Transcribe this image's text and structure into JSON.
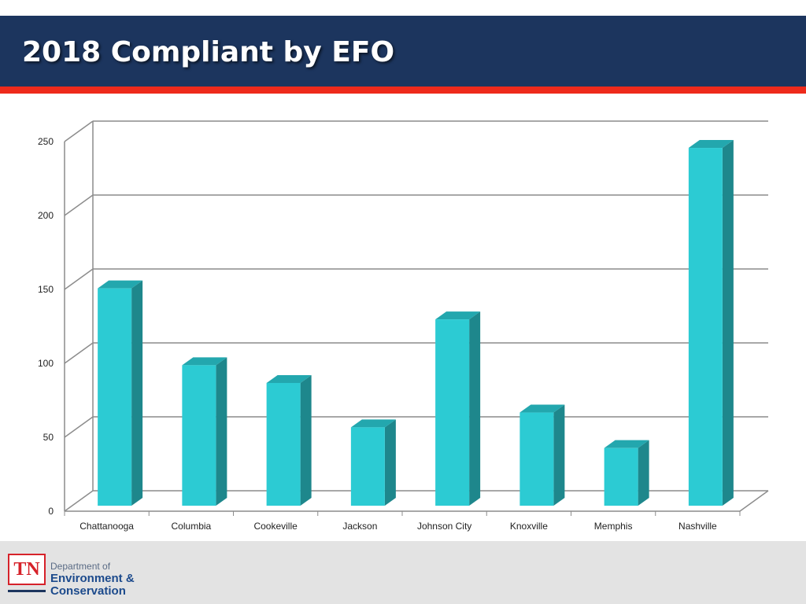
{
  "slide": {
    "title": "2018 Compliant by EFO"
  },
  "footer": {
    "logo_mark": "TN",
    "department_line1": "Department of",
    "department_line2": "Environment &",
    "department_line3": "Conservation"
  },
  "colors": {
    "bar_front": "#2ccbd3",
    "bar_side": "#1e878c",
    "bar_top": "#23a7ae",
    "header": "#1c355e",
    "accent": "#ee2a1b"
  },
  "chart_data": {
    "type": "bar",
    "title": "",
    "xlabel": "",
    "ylabel": "",
    "categories": [
      "Chattanooga",
      "Columbia",
      "Cookeville",
      "Jackson",
      "Johnson City",
      "Knoxville",
      "Memphis",
      "Nashville"
    ],
    "values": [
      147,
      95,
      83,
      53,
      126,
      63,
      39,
      242
    ],
    "ylim": [
      0,
      250
    ],
    "yticks": [
      0,
      50,
      100,
      150,
      200,
      250
    ],
    "grid": true,
    "legend": "none"
  }
}
